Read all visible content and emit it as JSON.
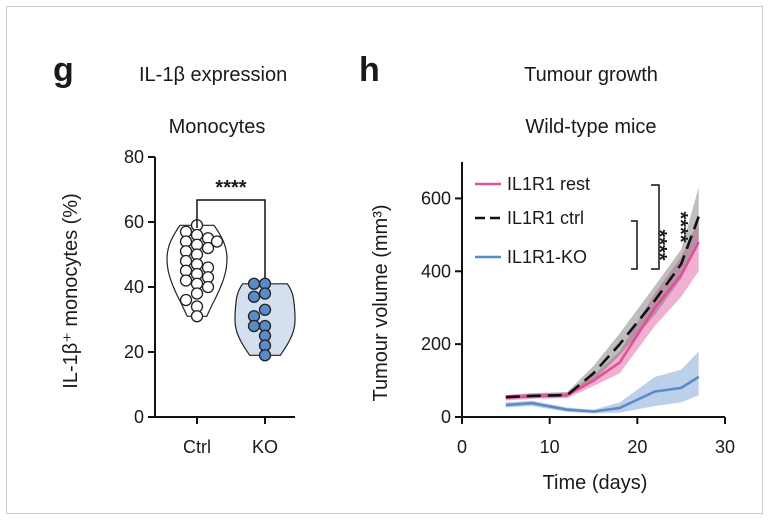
{
  "chart_data": [
    {
      "panel": "g",
      "type": "violin",
      "title": "IL-1β expression",
      "subtitle": "Monocytes",
      "ylabel": "IL-1β⁺ monocytes (%)",
      "ylim": [
        0,
        80
      ],
      "yticks": [
        "0",
        "20",
        "40",
        "60",
        "80"
      ],
      "categories": [
        "Ctrl",
        "KO"
      ],
      "colors": {
        "Ctrl": "#ffffff",
        "KO": "#5b8ac9",
        "violin_ctrl": "#ffffff",
        "violin_ko": "#d4dff0"
      },
      "points": {
        "Ctrl": [
          59,
          57,
          56,
          55,
          54,
          54,
          53,
          52,
          51,
          50,
          48,
          47,
          46,
          45,
          44,
          43,
          42,
          41,
          40,
          38,
          36,
          34,
          31
        ],
        "KO": [
          41,
          41,
          38,
          37,
          33,
          31,
          28,
          28,
          25,
          22,
          19
        ]
      },
      "significance": "****"
    },
    {
      "panel": "h",
      "type": "line",
      "title": "Tumour growth",
      "subtitle": "Wild-type mice",
      "xlabel": "Time (days)",
      "ylabel": "Tumour volume (mm³)",
      "xlim": [
        0,
        30
      ],
      "ylim": [
        0,
        700
      ],
      "xticks": [
        "0",
        "10",
        "20",
        "30"
      ],
      "yticks": [
        "0",
        "200",
        "400",
        "600"
      ],
      "series": [
        {
          "name": "IL1R1 rest",
          "color": "#e0509a",
          "dash": "solid",
          "x": [
            5,
            8,
            12,
            15,
            18,
            22,
            25,
            27
          ],
          "y": [
            52,
            58,
            60,
            100,
            150,
            300,
            390,
            480
          ],
          "lower": [
            45,
            50,
            52,
            85,
            120,
            250,
            330,
            400
          ],
          "upper": [
            60,
            66,
            68,
            115,
            180,
            340,
            440,
            540
          ]
        },
        {
          "name": "IL1R1 ctrl",
          "color": "#111111",
          "dash": "dashed",
          "x": [
            5,
            8,
            12,
            15,
            18,
            22,
            25,
            27
          ],
          "y": [
            55,
            58,
            60,
            120,
            200,
            320,
            420,
            550
          ],
          "lower": [
            50,
            52,
            55,
            100,
            170,
            280,
            380,
            480
          ],
          "upper": [
            60,
            64,
            68,
            140,
            230,
            360,
            460,
            630
          ]
        },
        {
          "name": "IL1R1-KO",
          "color": "#5b8ac9",
          "dash": "solid",
          "x": [
            5,
            8,
            12,
            15,
            18,
            22,
            25,
            27
          ],
          "y": [
            33,
            38,
            20,
            15,
            25,
            70,
            80,
            110
          ],
          "lower": [
            26,
            30,
            14,
            10,
            12,
            30,
            40,
            60
          ],
          "upper": [
            40,
            45,
            26,
            20,
            40,
            110,
            130,
            180
          ]
        }
      ],
      "significance": [
        "****",
        "****"
      ]
    }
  ]
}
